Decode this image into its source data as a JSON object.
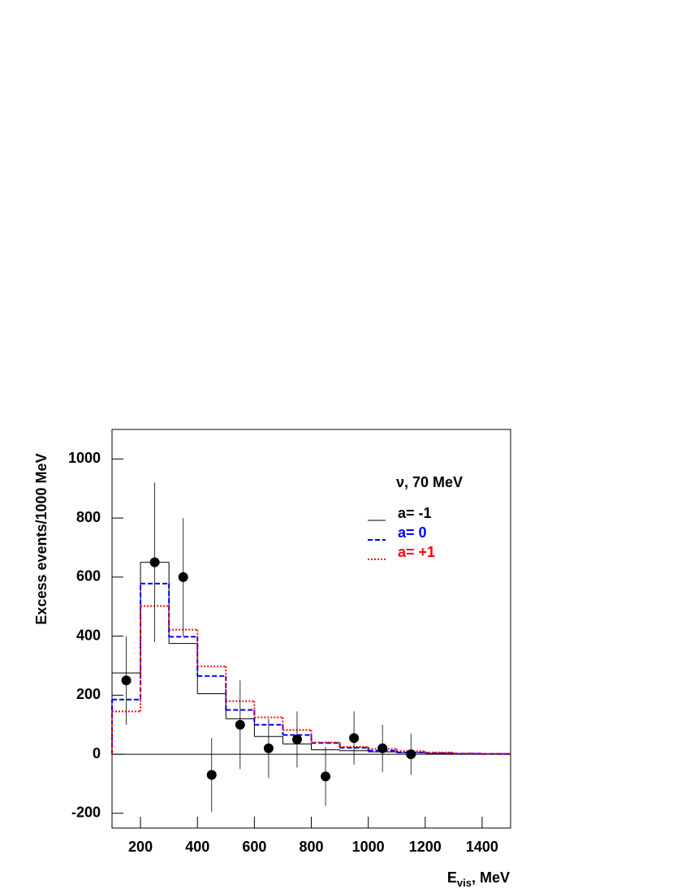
{
  "chart_data": {
    "type": "histogram",
    "ylabel": "Excess events/1000 MeV",
    "xlabel": {
      "main": "E",
      "sub": "vis",
      "rest": ", MeV"
    },
    "annotation": "ν, 70 MeV",
    "xlim": [
      100,
      1500
    ],
    "ylim": [
      -250,
      1100
    ],
    "xticks": [
      200,
      400,
      600,
      800,
      1000,
      1200,
      1400
    ],
    "yticks": [
      -200,
      0,
      200,
      400,
      600,
      800,
      1000
    ],
    "bins": [
      100,
      200,
      300,
      400,
      500,
      600,
      700,
      800,
      900,
      1000,
      1100,
      1200,
      1300,
      1400,
      1500
    ],
    "series": [
      {
        "name": "a= -1",
        "color": "#000000",
        "style": "solid",
        "values": [
          275,
          650,
          375,
          205,
          120,
          60,
          35,
          15,
          12,
          8,
          5,
          3,
          2,
          1
        ]
      },
      {
        "name": "a= 0",
        "color": "#0000ff",
        "style": "dashed",
        "values": [
          185,
          578,
          398,
          265,
          150,
          100,
          65,
          38,
          22,
          12,
          6,
          4,
          2,
          1
        ]
      },
      {
        "name": "a= +1",
        "color": "#ff0000",
        "style": "dotted",
        "values": [
          145,
          502,
          422,
          298,
          180,
          125,
          82,
          40,
          25,
          18,
          10,
          6,
          3,
          2
        ]
      }
    ],
    "points": {
      "color": "#000000",
      "x": [
        150,
        250,
        350,
        450,
        550,
        650,
        750,
        850,
        950,
        1050,
        1150
      ],
      "values": [
        250,
        650,
        600,
        -70,
        100,
        20,
        50,
        -75,
        55,
        20,
        0
      ],
      "errors": [
        150,
        270,
        200,
        125,
        150,
        100,
        95,
        100,
        90,
        80,
        70
      ]
    }
  }
}
